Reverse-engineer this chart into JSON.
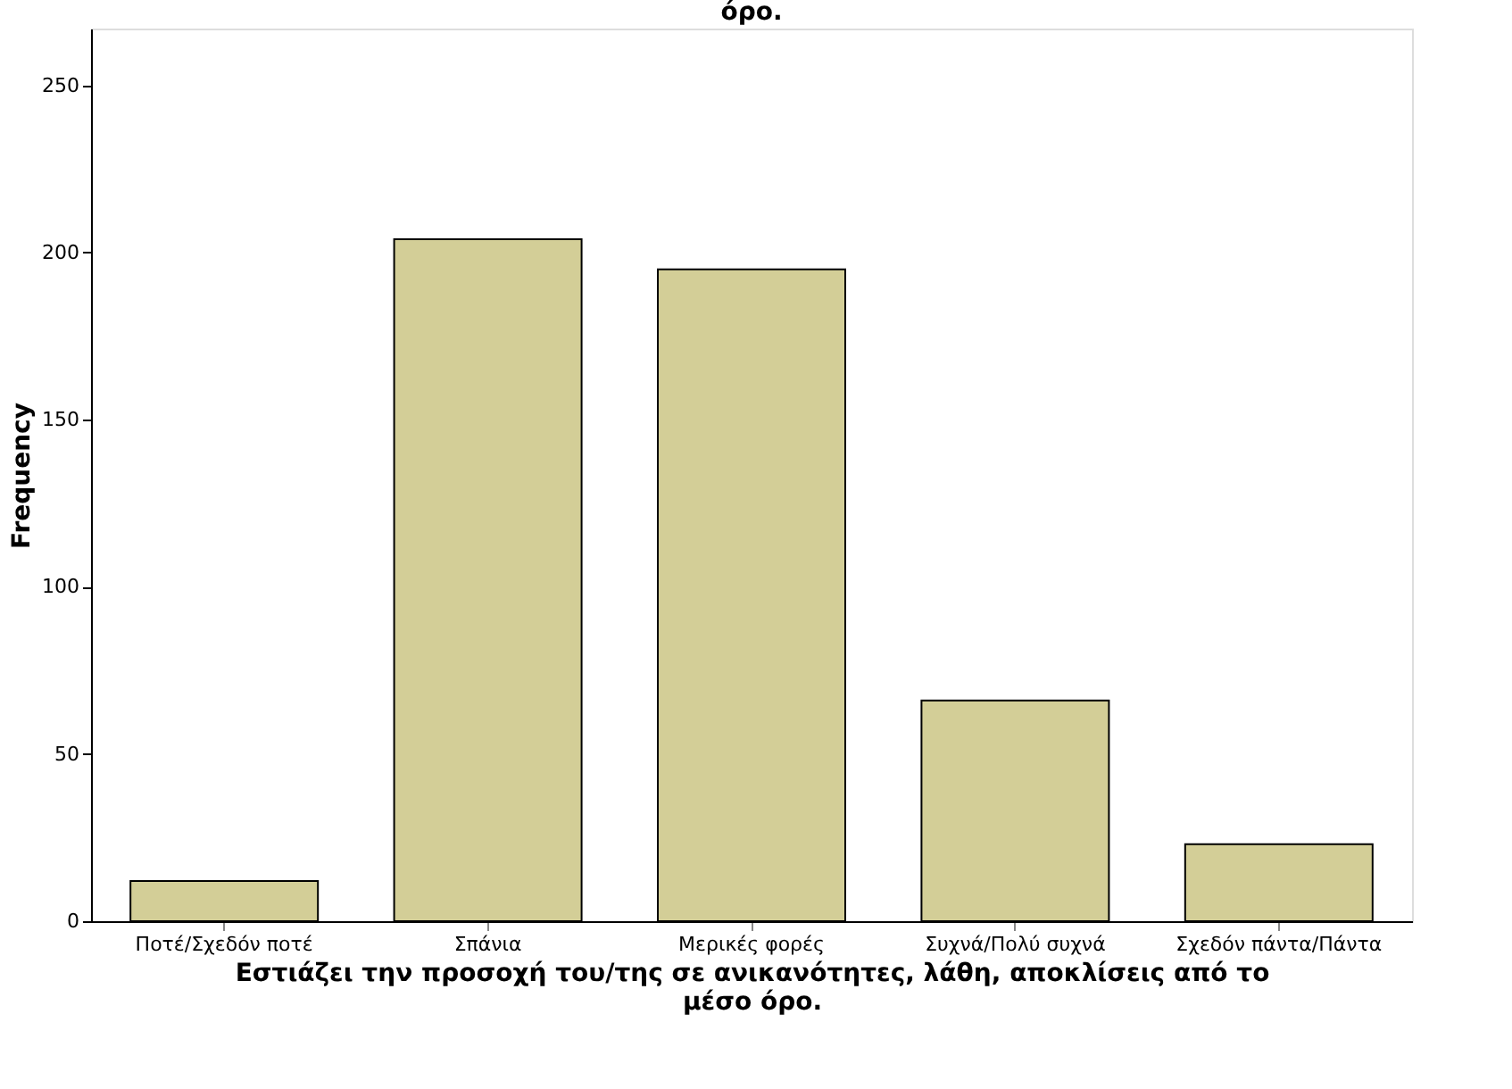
{
  "chart_data": {
    "type": "bar",
    "title": "όρο.",
    "xlabel": "Εστιάζει την προσοχή του/της σε ανικανότητες, λάθη, αποκλίσεις από το\nμέσο όρο.",
    "ylabel": "Frequency",
    "categories": [
      "Ποτέ/Σχεδόν ποτέ",
      "Σπάνια",
      "Μερικές φορές",
      "Συχνά/Πολύ συχνά",
      "Σχεδόν πάντα/Πάντα"
    ],
    "values": [
      12,
      204,
      195,
      66,
      23
    ],
    "color": "#d3ce97",
    "ylim": [
      0,
      267
    ],
    "yticks": [
      0,
      50,
      100,
      150,
      200,
      250
    ],
    "grid": false
  }
}
